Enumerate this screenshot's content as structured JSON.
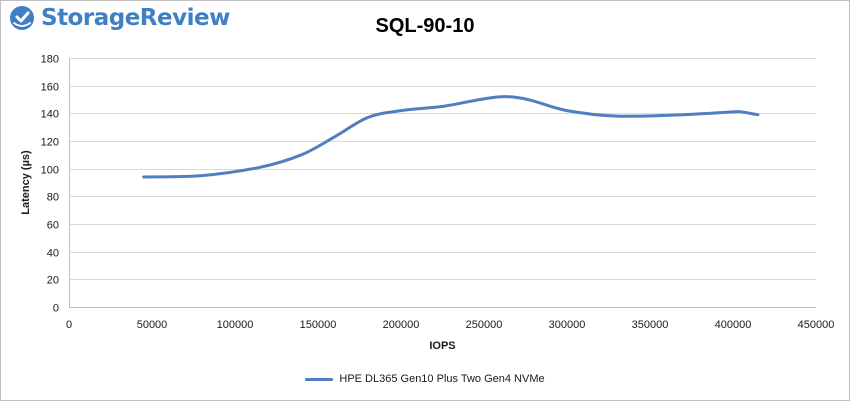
{
  "header": {
    "brand": "StorageReview",
    "logo_icon": "storagereview-logo-icon",
    "brand_color": "#3f7fc4"
  },
  "chart_data": {
    "type": "line",
    "title": "SQL-90-10",
    "xlabel": "IOPS",
    "ylabel": "Latency (µs)",
    "xlim": [
      0,
      450000
    ],
    "ylim": [
      0,
      180
    ],
    "x_ticks": [
      0,
      50000,
      100000,
      150000,
      200000,
      250000,
      300000,
      350000,
      400000,
      450000
    ],
    "y_ticks": [
      0,
      20,
      40,
      60,
      80,
      100,
      120,
      140,
      160,
      180
    ],
    "grid": "horizontal",
    "legend_position": "bottom",
    "series": [
      {
        "name": "HPE DL365 Gen10 Plus Two Gen4 NVMe",
        "color": "#4f7fbf",
        "x": [
          45000,
          80000,
          115000,
          140000,
          160000,
          180000,
          200000,
          225000,
          265000,
          300000,
          330000,
          370000,
          400000,
          405000,
          415000
        ],
        "y": [
          94,
          95,
          101,
          110,
          123,
          137,
          142,
          145,
          152,
          142,
          138,
          139,
          141,
          141,
          139
        ]
      }
    ]
  }
}
